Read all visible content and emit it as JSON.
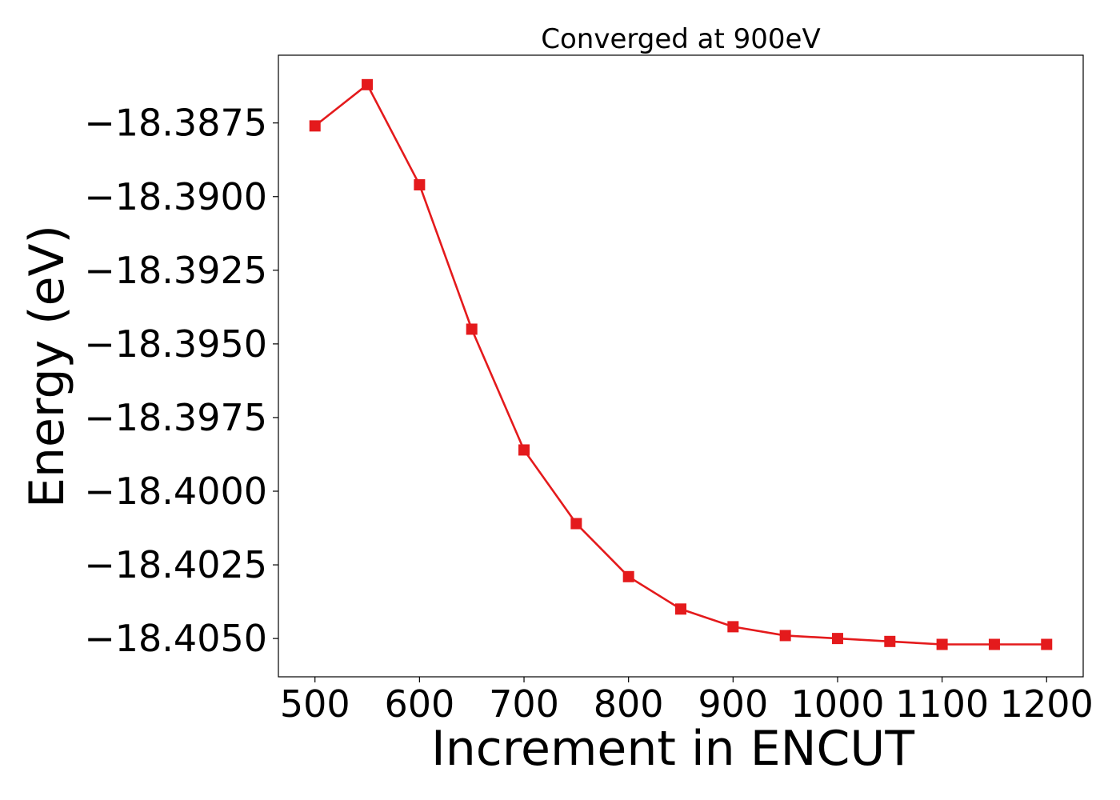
{
  "chart_data": {
    "type": "line",
    "title": "Converged at 900eV",
    "xlabel": "Increment in ENCUT",
    "ylabel": "Energy (eV)",
    "xlim": [
      465,
      1235
    ],
    "ylim": [
      -18.4063,
      -18.3852
    ],
    "x_ticks": [
      500,
      600,
      700,
      800,
      900,
      1000,
      1100,
      1200
    ],
    "y_ticks": [
      -18.3875,
      -18.39,
      -18.3925,
      -18.395,
      -18.3975,
      -18.4,
      -18.4025,
      -18.405
    ],
    "y_tick_labels": [
      "−18.3875",
      "−18.3900",
      "−18.3925",
      "−18.3950",
      "−18.3975",
      "−18.4000",
      "−18.4025",
      "−18.4050"
    ],
    "grid": false,
    "series": [
      {
        "color": "#e41a1c",
        "marker": "square",
        "x": [
          500,
          550,
          600,
          650,
          700,
          750,
          800,
          850,
          900,
          950,
          1000,
          1050,
          1100,
          1150,
          1200
        ],
        "y": [
          -18.3876,
          -18.3862,
          -18.3896,
          -18.3945,
          -18.3986,
          -18.4011,
          -18.4029,
          -18.404,
          -18.4046,
          -18.4049,
          -18.405,
          -18.4051,
          -18.4052,
          -18.4052,
          -18.4052
        ]
      }
    ]
  }
}
